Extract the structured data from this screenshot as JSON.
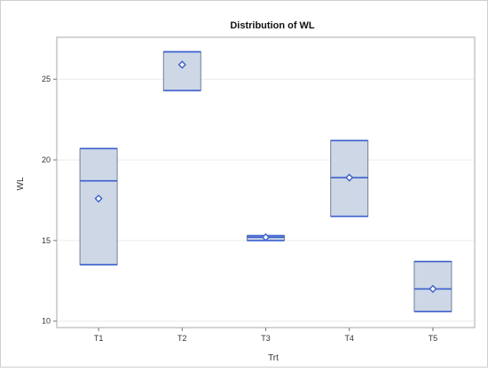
{
  "chart_data": {
    "type": "box",
    "title": "Distribution of WL",
    "xlabel": "Trt",
    "ylabel": "WL",
    "categories": [
      "T1",
      "T2",
      "T3",
      "T4",
      "T5"
    ],
    "y_ticks": [
      "10",
      "15",
      "20",
      "25"
    ],
    "ylim": [
      9.6,
      27.6
    ],
    "grid": true,
    "boxes": [
      {
        "category": "T1",
        "q1": 13.5,
        "median": 18.7,
        "q3": 20.7,
        "mean": 17.6
      },
      {
        "category": "T2",
        "q1": 24.3,
        "median": 26.7,
        "q3": 26.7,
        "mean": 25.9
      },
      {
        "category": "T3",
        "q1": 15.0,
        "median": 15.2,
        "q3": 15.3,
        "mean": 15.2
      },
      {
        "category": "T4",
        "q1": 16.5,
        "median": 18.9,
        "q3": 21.2,
        "mean": 18.9
      },
      {
        "category": "T5",
        "q1": 10.6,
        "median": 12.0,
        "q3": 13.7,
        "mean": 12.0
      }
    ]
  }
}
